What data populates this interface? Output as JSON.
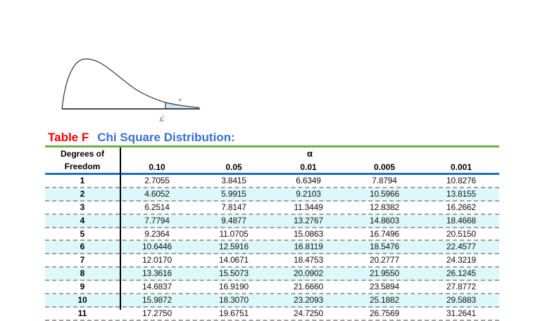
{
  "figure": {
    "alpha_label": "α",
    "critical_label": "χ²α",
    "shade_color": "#c7e6f5"
  },
  "title": {
    "table_label": "Table F",
    "name": "Chi Square Distribution:",
    "table_label_color": "#ff0000",
    "name_color": "#3a6fd0"
  },
  "table": {
    "df_header_line1": "Degrees of",
    "df_header_line2": "Freedom",
    "alpha_header": "α",
    "columns": [
      "0.10",
      "0.05",
      "0.01",
      "0.005",
      "0.001"
    ],
    "rows": [
      {
        "df": "1",
        "values": [
          "2.7055",
          "3.8415",
          "6.6349",
          "7.8794",
          "10.8276"
        ]
      },
      {
        "df": "2",
        "values": [
          "4.6052",
          "5.9915",
          "9.2103",
          "10.5966",
          "13.8155"
        ]
      },
      {
        "df": "3",
        "values": [
          "6.2514",
          "7.8147",
          "11.3449",
          "12.8382",
          "16.2662"
        ]
      },
      {
        "df": "4",
        "values": [
          "7.7794",
          "9.4877",
          "13.2767",
          "14.8603",
          "18.4668"
        ]
      },
      {
        "df": "5",
        "values": [
          "9.2364",
          "11.0705",
          "15.0863",
          "16.7496",
          "20.5150"
        ]
      },
      {
        "df": "6",
        "values": [
          "10.6446",
          "12.5916",
          "16.8119",
          "18.5476",
          "22.4577"
        ]
      },
      {
        "df": "7",
        "values": [
          "12.0170",
          "14.0671",
          "18.4753",
          "20.2777",
          "24.3219"
        ]
      },
      {
        "df": "8",
        "values": [
          "13.3616",
          "15.5073",
          "20.0902",
          "21.9550",
          "26.1245"
        ]
      },
      {
        "df": "9",
        "values": [
          "14.6837",
          "16.9190",
          "21.6660",
          "23.5894",
          "27.8772"
        ]
      },
      {
        "df": "10",
        "values": [
          "15.9872",
          "18.3070",
          "23.2093",
          "25.1882",
          "29.5883"
        ]
      },
      {
        "df": "11",
        "values": [
          "17.2750",
          "19.6751",
          "24.7250",
          "26.7569",
          "31.2641"
        ]
      }
    ],
    "colors": {
      "top_rule": "#70ad47",
      "header_rule": "#1a6fc4",
      "alt_row": "#ddf8fb"
    }
  }
}
